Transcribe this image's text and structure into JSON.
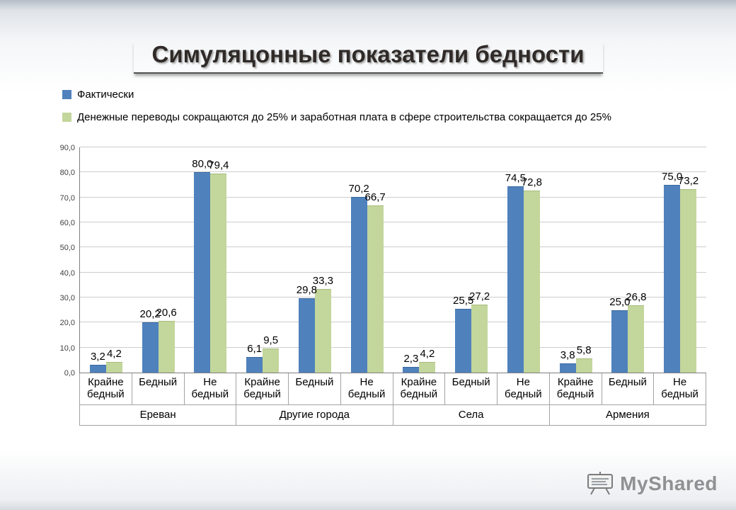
{
  "slide": {
    "title": "Симуляцонные показатели бедности"
  },
  "watermark": {
    "text": "MyShared"
  },
  "chart_data": {
    "type": "bar",
    "title": "Симуляцонные показатели бедности",
    "legend_position": "top-left",
    "grid": true,
    "ylim": [
      0,
      90
    ],
    "ytick_step": 10,
    "yticks": [
      "0,0",
      "10,0",
      "20,0",
      "30,0",
      "40,0",
      "50,0",
      "60,0",
      "70,0",
      "80,0",
      "90,0"
    ],
    "groups": [
      "Ереван",
      "Другие города",
      "Села",
      "Армения"
    ],
    "categories": [
      "Крайне бедный",
      "Бедный",
      "Не бедный",
      "Крайне бедный",
      "Бедный",
      "Не бедный",
      "Крайне бедный",
      "Бедный",
      "Не бедный",
      "Крайне бедный",
      "Бедный",
      "Не бедный"
    ],
    "series": [
      {
        "name": "Фактически",
        "color": "#4f81bd",
        "border": "#3d6aa0",
        "values": [
          3.2,
          20.2,
          80.0,
          6.1,
          29.8,
          70.2,
          2.3,
          25.5,
          74.5,
          3.8,
          25.0,
          75.0
        ]
      },
      {
        "name": "Денежные переводы сокращаются до 25% и заработная плата в сфере строительства сокращается до 25%",
        "color": "#c3d69b",
        "border": "#a8bd80",
        "values": [
          4.2,
          20.6,
          79.4,
          9.5,
          33.3,
          66.7,
          4.2,
          27.2,
          72.8,
          5.8,
          26.8,
          73.2
        ]
      }
    ]
  }
}
